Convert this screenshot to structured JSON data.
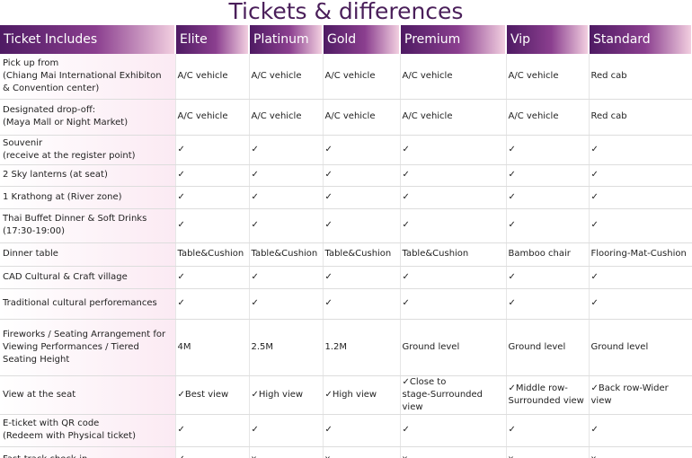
{
  "title": "Tickets & differences",
  "table": {
    "header": [
      "Ticket Includes",
      "Elite",
      "Platinum",
      "Gold",
      "Premium",
      "Vip",
      "Standard"
    ],
    "rows": [
      {
        "label": "Pick up from\n(Chiang Mai International Exhibiton\n& Convention center)",
        "cells": [
          "A/C vehicle",
          "A/C vehicle",
          "A/C vehicle",
          "A/C vehicle",
          "A/C vehicle",
          "Red cab"
        ]
      },
      {
        "label": "Designated drop-off:\n(Maya Mall or Night Market)",
        "cells": [
          "A/C vehicle",
          "A/C vehicle",
          "A/C vehicle",
          "A/C vehicle",
          "A/C vehicle",
          "Red cab"
        ]
      },
      {
        "label": "Souvenir\n(receive at the register point)",
        "cells": [
          "✓",
          "✓",
          "✓",
          "✓",
          "✓",
          "✓"
        ]
      },
      {
        "label": "2 Sky lanterns (at seat)",
        "cells": [
          "✓",
          "✓",
          "✓",
          "✓",
          "✓",
          "✓"
        ]
      },
      {
        "label": "1 Krathong at (River zone)",
        "cells": [
          "✓",
          "✓",
          "✓",
          "✓",
          "✓",
          "✓"
        ]
      },
      {
        "label": "Thai Buffet Dinner & Soft Drinks\n(17:30-19:00)",
        "cells": [
          "✓",
          "✓",
          "✓",
          "✓",
          "✓",
          "✓"
        ]
      },
      {
        "label": "Dinner table",
        "cells": [
          "Table&Cushion",
          "Table&Cushion",
          "Table&Cushion",
          "Table&Cushion",
          "Bamboo chair",
          "Flooring-Mat-Cushion"
        ]
      },
      {
        "label": "CAD Cultural & Craft village",
        "cells": [
          "✓",
          "✓",
          "✓",
          "✓",
          "✓",
          "✓"
        ]
      },
      {
        "label": "Traditional cultural perforemances",
        "cells": [
          "✓",
          "✓",
          "✓",
          "✓",
          "✓",
          "✓"
        ]
      },
      {
        "label": "Fireworks / Seating Arrangement for\nViewing Performances / Tiered\nSeating Height",
        "cells": [
          "4M",
          "2.5M",
          "1.2M",
          "Ground level",
          "Ground level",
          "Ground level"
        ]
      },
      {
        "label": "View at the seat",
        "cells": [
          "✓Best view",
          "✓High view",
          "✓High view",
          "✓Close to\nstage-Surrounded view",
          "✓Middle row-\nSurrounded view",
          "✓Back row-Wider view"
        ]
      },
      {
        "label": "E-ticket with QR code\n(Redeem with Physical ticket)",
        "cells": [
          "✓",
          "✓",
          "✓",
          "✓",
          "✓",
          "✓"
        ]
      },
      {
        "label": "Fast-track check-in",
        "cells": [
          "✓",
          "x",
          "x",
          "x",
          "x",
          "x"
        ]
      }
    ]
  }
}
